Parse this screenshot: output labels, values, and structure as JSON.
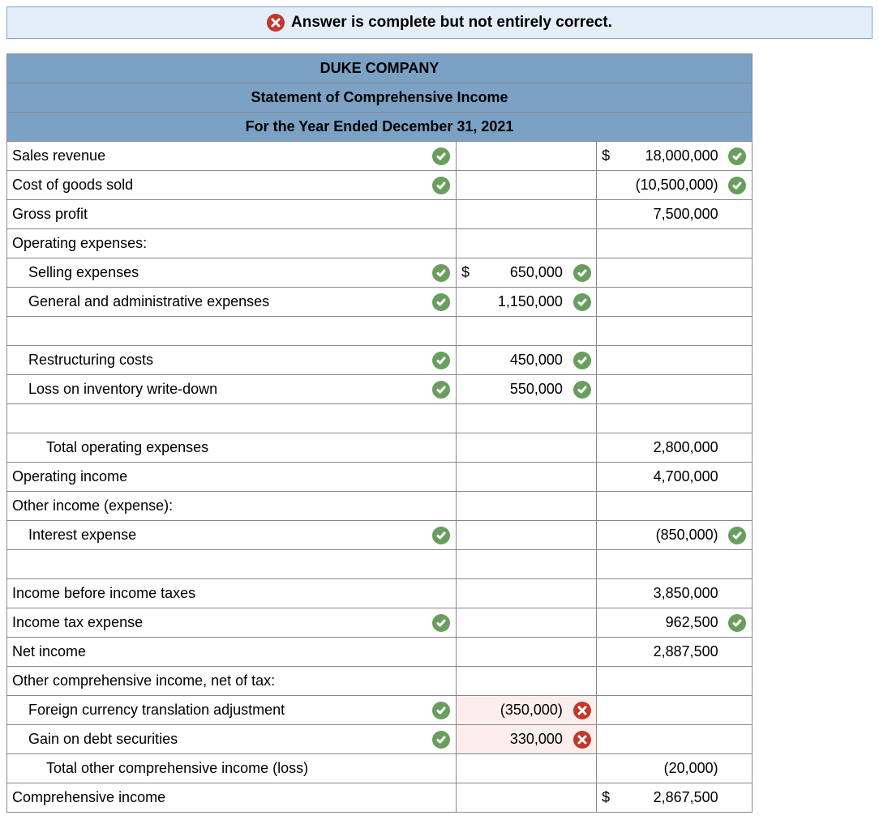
{
  "banner": {
    "text": "Answer is complete but not entirely correct.",
    "icon": "x",
    "bg_color": "#e3eef9",
    "border_color": "#7ba7cc"
  },
  "headers": {
    "company": "DUKE COMPANY",
    "title": "Statement of Comprehensive Income",
    "period": "For the Year Ended December 31, 2021",
    "bg_color": "#7ba1c4"
  },
  "checkColor": "#6a9e5f",
  "xColor": "#c0392b",
  "rows": [
    {
      "label": "Sales revenue",
      "indent": 0,
      "s1": "check",
      "sym2": "$",
      "v2": "18,000,000",
      "s3": "check"
    },
    {
      "label": "Cost of goods sold",
      "indent": 0,
      "s1": "check",
      "v2": "(10,500,000)",
      "s3": "check"
    },
    {
      "label": "Gross profit",
      "indent": 0,
      "v2": "7,500,000"
    },
    {
      "label": "Operating expenses:",
      "indent": 0
    },
    {
      "label": "Selling expenses",
      "indent": 1,
      "s1": "check",
      "sym1": "$",
      "v1": "650,000",
      "s2": "check"
    },
    {
      "label": "General and administrative expenses",
      "indent": 1,
      "s1": "check",
      "v1": "1,150,000",
      "s2": "check"
    },
    {
      "label": "",
      "indent": 0
    },
    {
      "label": "Restructuring costs",
      "indent": 1,
      "s1": "check",
      "v1": "450,000",
      "s2": "check"
    },
    {
      "label": "Loss on inventory write-down",
      "indent": 1,
      "s1": "check",
      "v1": "550,000",
      "s2": "check"
    },
    {
      "label": "",
      "indent": 0
    },
    {
      "label": "Total operating expenses",
      "indent": 2,
      "v2": "2,800,000"
    },
    {
      "label": "Operating income",
      "indent": 0,
      "v2": "4,700,000"
    },
    {
      "label": "Other income (expense):",
      "indent": 0
    },
    {
      "label": "Interest expense",
      "indent": 1,
      "s1": "check",
      "v2": "(850,000)",
      "s3": "check"
    },
    {
      "label": "",
      "indent": 0
    },
    {
      "label": "Income before income taxes",
      "indent": 0,
      "v2": "3,850,000"
    },
    {
      "label": "Income tax expense",
      "indent": 0,
      "s1": "check",
      "v2": "962,500",
      "s3": "check"
    },
    {
      "label": "Net income",
      "indent": 0,
      "v2": "2,887,500"
    },
    {
      "label": "Other comprehensive income, net of tax:",
      "indent": 0
    },
    {
      "label": "Foreign currency translation adjustment",
      "indent": 1,
      "s1": "check",
      "v1": "(350,000)",
      "s2": "x",
      "v1err": true
    },
    {
      "label": "Gain on debt securities",
      "indent": 1,
      "s1": "check",
      "v1": "330,000",
      "s2": "x",
      "v1err": true
    },
    {
      "label": "Total other comprehensive income (loss)",
      "indent": 2,
      "v2": "(20,000)"
    },
    {
      "label": "Comprehensive income",
      "indent": 0,
      "sym2": "$",
      "v2": "2,867,500"
    }
  ]
}
